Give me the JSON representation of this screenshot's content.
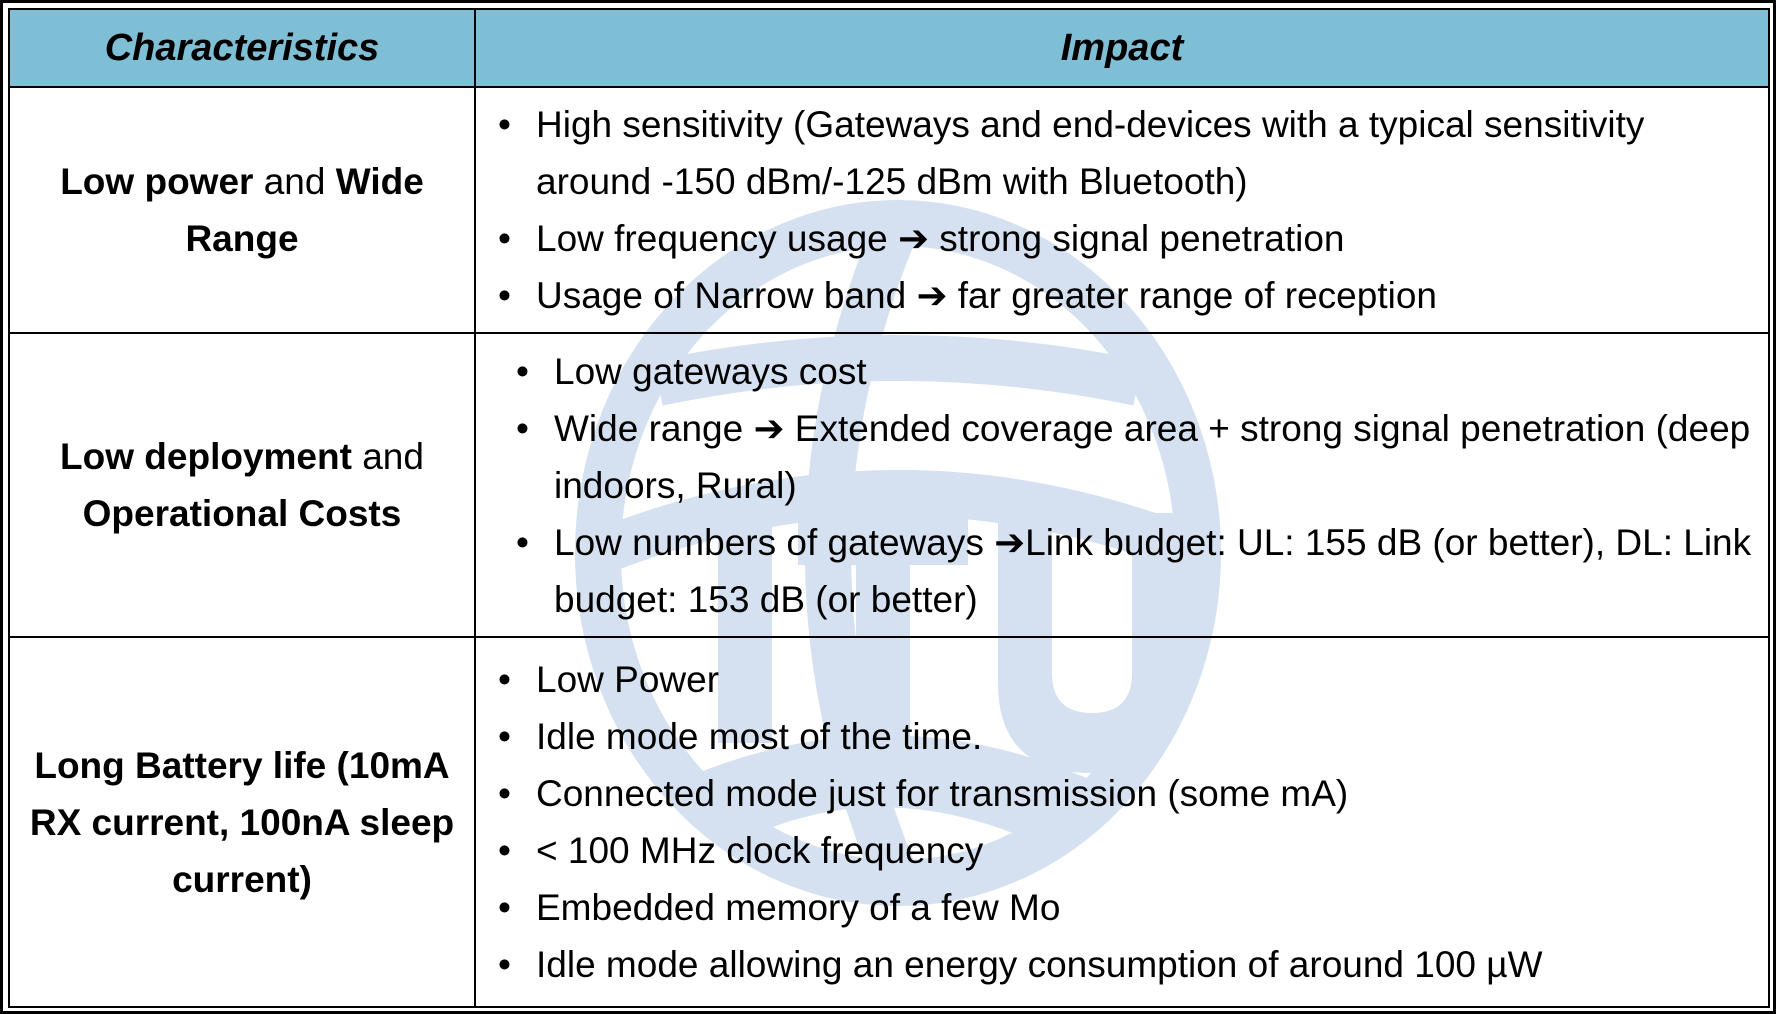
{
  "header": {
    "col1": "Characteristics",
    "col2": "Impact"
  },
  "rows": [
    {
      "characteristic": {
        "p1": "Low power",
        "p2": " and ",
        "p3": "Wide Range"
      },
      "impacts": [
        "High sensitivity (Gateways and end-devices with a typical sensitivity around -150 dBm/-125 dBm with Bluetooth)",
        "Low frequency usage ➔ strong signal penetration",
        "Usage of Narrow band ➔ far greater range of reception"
      ]
    },
    {
      "characteristic": {
        "p1": "Low deployment",
        "p2": " and ",
        "p3": "Operational Costs"
      },
      "impacts": [
        "Low gateways cost",
        "Wide range ➔ Extended coverage area + strong signal penetration (deep indoors, Rural)",
        "Low numbers of gateways ➔Link budget:  UL: 155 dB (or better), DL: Link budget: 153 dB (or better)"
      ]
    },
    {
      "characteristic": {
        "p1": "Long Battery life (10mA RX current, 100nA sleep current)"
      },
      "impacts": [
        "Low Power",
        "Idle mode most of the time.",
        "Connected mode just for transmission (some mA)",
        "< 100 MHz clock frequency",
        "Embedded memory of a few Mo",
        "Idle mode allowing an energy consumption of around 100 µW"
      ]
    }
  ],
  "colors": {
    "header_bg": "#7fbfd6",
    "watermark": "#d5e1f0"
  },
  "watermark_icon": "itu-globe-logo"
}
